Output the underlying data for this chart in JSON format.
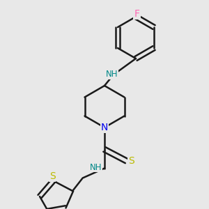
{
  "bg_color": "#e8e8e8",
  "bond_color": "#1a1a1a",
  "N_color": "#0000ee",
  "H_color": "#008888",
  "S_color": "#bbbb00",
  "F_color": "#ff69b4",
  "line_width": 1.8,
  "font_size_atom": 8.5,
  "figsize": [
    3.0,
    3.0
  ],
  "dpi": 100,
  "xlim": [
    0,
    10
  ],
  "ylim": [
    0,
    10
  ]
}
